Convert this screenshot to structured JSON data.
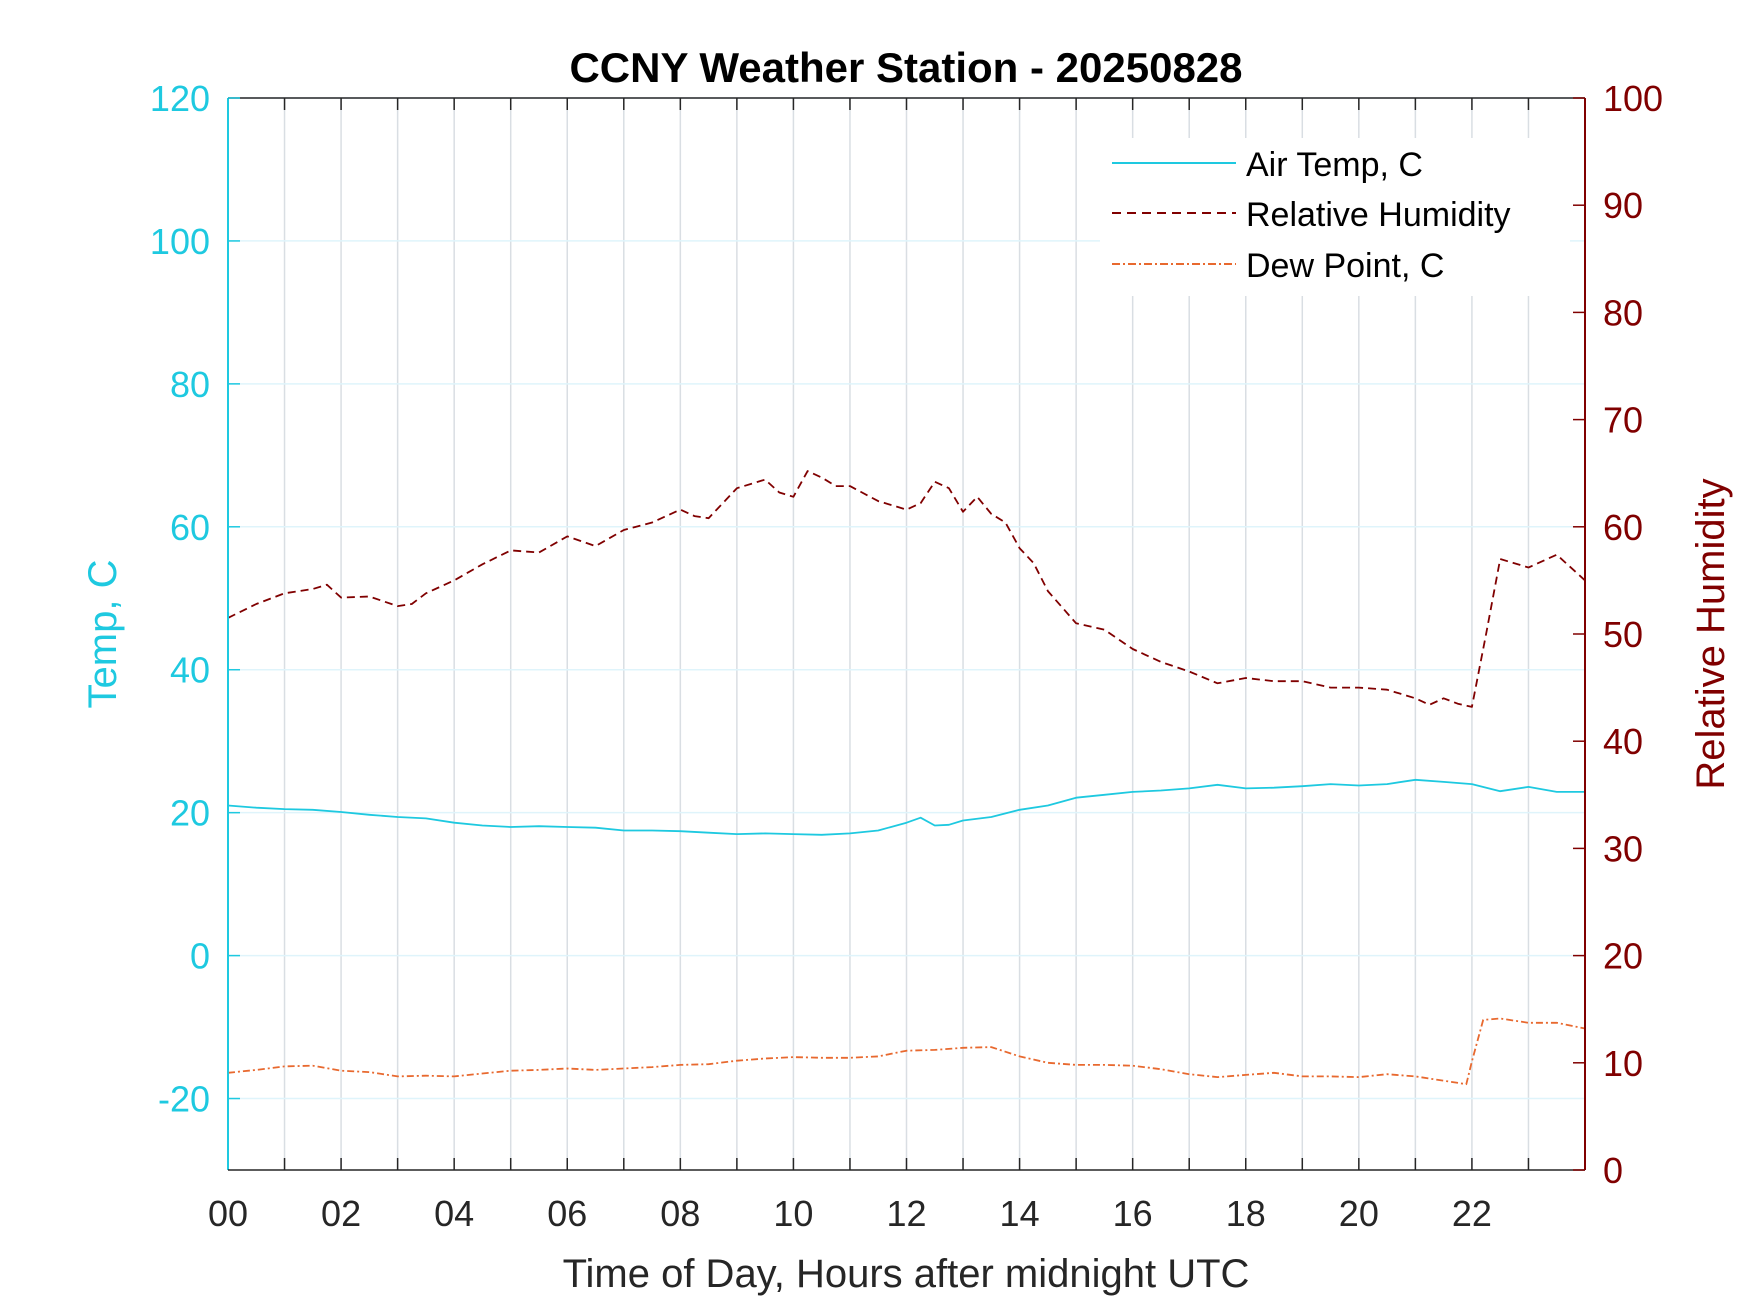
{
  "chart_data": {
    "type": "line",
    "title": "CCNY Weather Station - 20250828",
    "xlabel": "Time of Day, Hours after midnight UTC",
    "ylabel_left": "Temp, C",
    "ylabel_right": "Relative Humidity",
    "xlim": [
      0,
      24
    ],
    "ylim_left": [
      -30,
      120
    ],
    "ylim_right": [
      0,
      100
    ],
    "x_ticks": [
      0,
      2,
      4,
      6,
      8,
      10,
      12,
      14,
      16,
      18,
      20,
      22
    ],
    "x_tick_labels": [
      "00",
      "02",
      "04",
      "06",
      "08",
      "10",
      "12",
      "14",
      "16",
      "18",
      "20",
      "22"
    ],
    "y_left_ticks": [
      -20,
      0,
      20,
      40,
      60,
      80,
      100,
      120
    ],
    "y_left_tick_labels": [
      "-20",
      "0",
      "20",
      "40",
      "60",
      "80",
      "100",
      "120"
    ],
    "y_right_ticks": [
      0,
      10,
      20,
      30,
      40,
      50,
      60,
      70,
      80,
      90,
      100
    ],
    "y_right_tick_labels": [
      "0",
      "10",
      "20",
      "30",
      "40",
      "50",
      "60",
      "70",
      "80",
      "90",
      "100"
    ],
    "grid": true,
    "legend_position": "top-right",
    "colors": {
      "left_axis": "#1ec9e0",
      "right_axis": "#800000",
      "air_temp": "#1ec9e0",
      "humidity": "#800000",
      "dew_point": "#e8692f",
      "grid": "#d9dee3"
    },
    "series": [
      {
        "name": "Air Temp, C",
        "axis": "left",
        "style": "solid",
        "x": [
          0,
          0.5,
          1,
          1.5,
          2,
          2.5,
          3,
          3.5,
          4,
          4.5,
          5,
          5.5,
          6,
          6.5,
          7,
          7.5,
          8,
          8.5,
          9,
          9.5,
          10,
          10.5,
          11,
          11.5,
          12,
          12.25,
          12.5,
          12.75,
          13,
          13.5,
          14,
          14.5,
          15,
          15.5,
          16,
          16.5,
          17,
          17.5,
          18,
          18.5,
          19,
          19.5,
          20,
          20.5,
          21,
          21.5,
          22,
          22.5,
          23,
          23.5,
          24
        ],
        "values": [
          21.0,
          20.7,
          20.5,
          20.4,
          20.1,
          19.7,
          19.4,
          19.2,
          18.6,
          18.2,
          18.0,
          18.1,
          18.0,
          17.9,
          17.5,
          17.5,
          17.4,
          17.2,
          17.0,
          17.1,
          17.0,
          16.9,
          17.1,
          17.5,
          18.6,
          19.3,
          18.2,
          18.3,
          18.9,
          19.4,
          20.4,
          21.0,
          22.1,
          22.5,
          22.9,
          23.1,
          23.4,
          23.9,
          23.4,
          23.5,
          23.7,
          24.0,
          23.8,
          24.0,
          24.6,
          24.3,
          24.0,
          23.0,
          23.6,
          22.9,
          22.9
        ]
      },
      {
        "name": "Relative Humidity",
        "axis": "right",
        "style": "dashed",
        "x": [
          0,
          0.5,
          1,
          1.5,
          1.75,
          2,
          2.5,
          3,
          3.25,
          3.5,
          4,
          4.5,
          5,
          5.5,
          6,
          6.5,
          7,
          7.5,
          8,
          8.25,
          8.5,
          9,
          9.5,
          9.75,
          10,
          10.25,
          10.5,
          10.75,
          11,
          11.5,
          12,
          12.25,
          12.5,
          12.75,
          13,
          13.25,
          13.5,
          13.75,
          14,
          14.25,
          14.5,
          15,
          15.5,
          16,
          16.5,
          17,
          17.5,
          18,
          18.5,
          19,
          19.5,
          20,
          20.5,
          21,
          21.25,
          21.5,
          21.75,
          22,
          22.25,
          22.5,
          23,
          23.5,
          24
        ],
        "values": [
          51.5,
          52.8,
          53.8,
          54.2,
          54.6,
          53.4,
          53.5,
          52.6,
          52.8,
          53.8,
          55.0,
          56.5,
          57.8,
          57.6,
          59.1,
          58.2,
          59.7,
          60.4,
          61.6,
          61.0,
          60.8,
          63.6,
          64.4,
          63.2,
          62.8,
          65.2,
          64.6,
          63.8,
          63.8,
          62.4,
          61.6,
          62.2,
          64.2,
          63.6,
          61.4,
          62.8,
          61.2,
          60.4,
          58.0,
          56.6,
          54.0,
          51.0,
          50.4,
          48.6,
          47.4,
          46.5,
          45.4,
          45.9,
          45.6,
          45.6,
          45.0,
          45.0,
          44.8,
          44.0,
          43.4,
          44.0,
          43.5,
          43.2,
          50.0,
          57.0,
          56.2,
          57.4,
          55.0
        ]
      },
      {
        "name": "Dew Point, C",
        "axis": "left",
        "style": "dashdot",
        "x": [
          0,
          0.5,
          1,
          1.5,
          2,
          2.5,
          3,
          3.5,
          4,
          4.5,
          5,
          5.5,
          6,
          6.5,
          7,
          7.5,
          8,
          8.5,
          9,
          9.5,
          10,
          10.5,
          11,
          11.5,
          12,
          12.5,
          13,
          13.5,
          14,
          14.5,
          15,
          15.5,
          16,
          16.5,
          17,
          17.5,
          18,
          18.5,
          19,
          19.5,
          20,
          20.5,
          21,
          21.5,
          21.9,
          22,
          22.2,
          22.5,
          23,
          23.5,
          24
        ],
        "values": [
          -16.4,
          -16.0,
          -15.5,
          -15.4,
          -16.1,
          -16.3,
          -16.9,
          -16.8,
          -16.9,
          -16.5,
          -16.1,
          -16.0,
          -15.8,
          -16.0,
          -15.8,
          -15.6,
          -15.3,
          -15.2,
          -14.7,
          -14.4,
          -14.2,
          -14.3,
          -14.3,
          -14.1,
          -13.3,
          -13.2,
          -12.9,
          -12.8,
          -14.1,
          -15.0,
          -15.3,
          -15.3,
          -15.4,
          -15.9,
          -16.6,
          -17.0,
          -16.7,
          -16.4,
          -16.9,
          -16.9,
          -17.0,
          -16.6,
          -16.9,
          -17.5,
          -18.0,
          -14.8,
          -9.0,
          -8.8,
          -9.4,
          -9.4,
          -10.2
        ]
      }
    ]
  }
}
